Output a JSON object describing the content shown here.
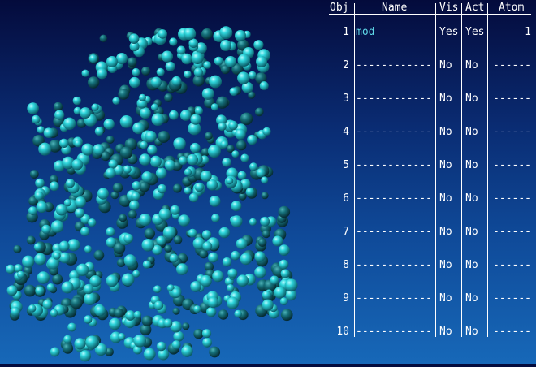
{
  "viewer": {
    "scene_name": "molecule-spheres",
    "background_top": "#040b3c",
    "background_bottom": "#1768b8",
    "atom_color": "#20c8d0"
  },
  "object_table": {
    "headers": {
      "obj": "Obj",
      "name": "Name",
      "vis": "Vis",
      "act": "Act",
      "atom": "Atom"
    },
    "rows": [
      {
        "obj": "1",
        "name": "mod",
        "vis": "Yes",
        "act": "Yes",
        "atom": "1"
      },
      {
        "obj": "2",
        "name": "------------",
        "vis": "No",
        "act": "No",
        "atom": "------"
      },
      {
        "obj": "3",
        "name": "------------",
        "vis": "No",
        "act": "No",
        "atom": "------"
      },
      {
        "obj": "4",
        "name": "------------",
        "vis": "No",
        "act": "No",
        "atom": "------"
      },
      {
        "obj": "5",
        "name": "------------",
        "vis": "No",
        "act": "No",
        "atom": "------"
      },
      {
        "obj": "6",
        "name": "------------",
        "vis": "No",
        "act": "No",
        "atom": "------"
      },
      {
        "obj": "7",
        "name": "------------",
        "vis": "No",
        "act": "No",
        "atom": "------"
      },
      {
        "obj": "8",
        "name": "------------",
        "vis": "No",
        "act": "No",
        "atom": "------"
      },
      {
        "obj": "9",
        "name": "------------",
        "vis": "No",
        "act": "No",
        "atom": "------"
      },
      {
        "obj": "10",
        "name": "------------",
        "vis": "No",
        "act": "No",
        "atom": "------"
      }
    ]
  }
}
